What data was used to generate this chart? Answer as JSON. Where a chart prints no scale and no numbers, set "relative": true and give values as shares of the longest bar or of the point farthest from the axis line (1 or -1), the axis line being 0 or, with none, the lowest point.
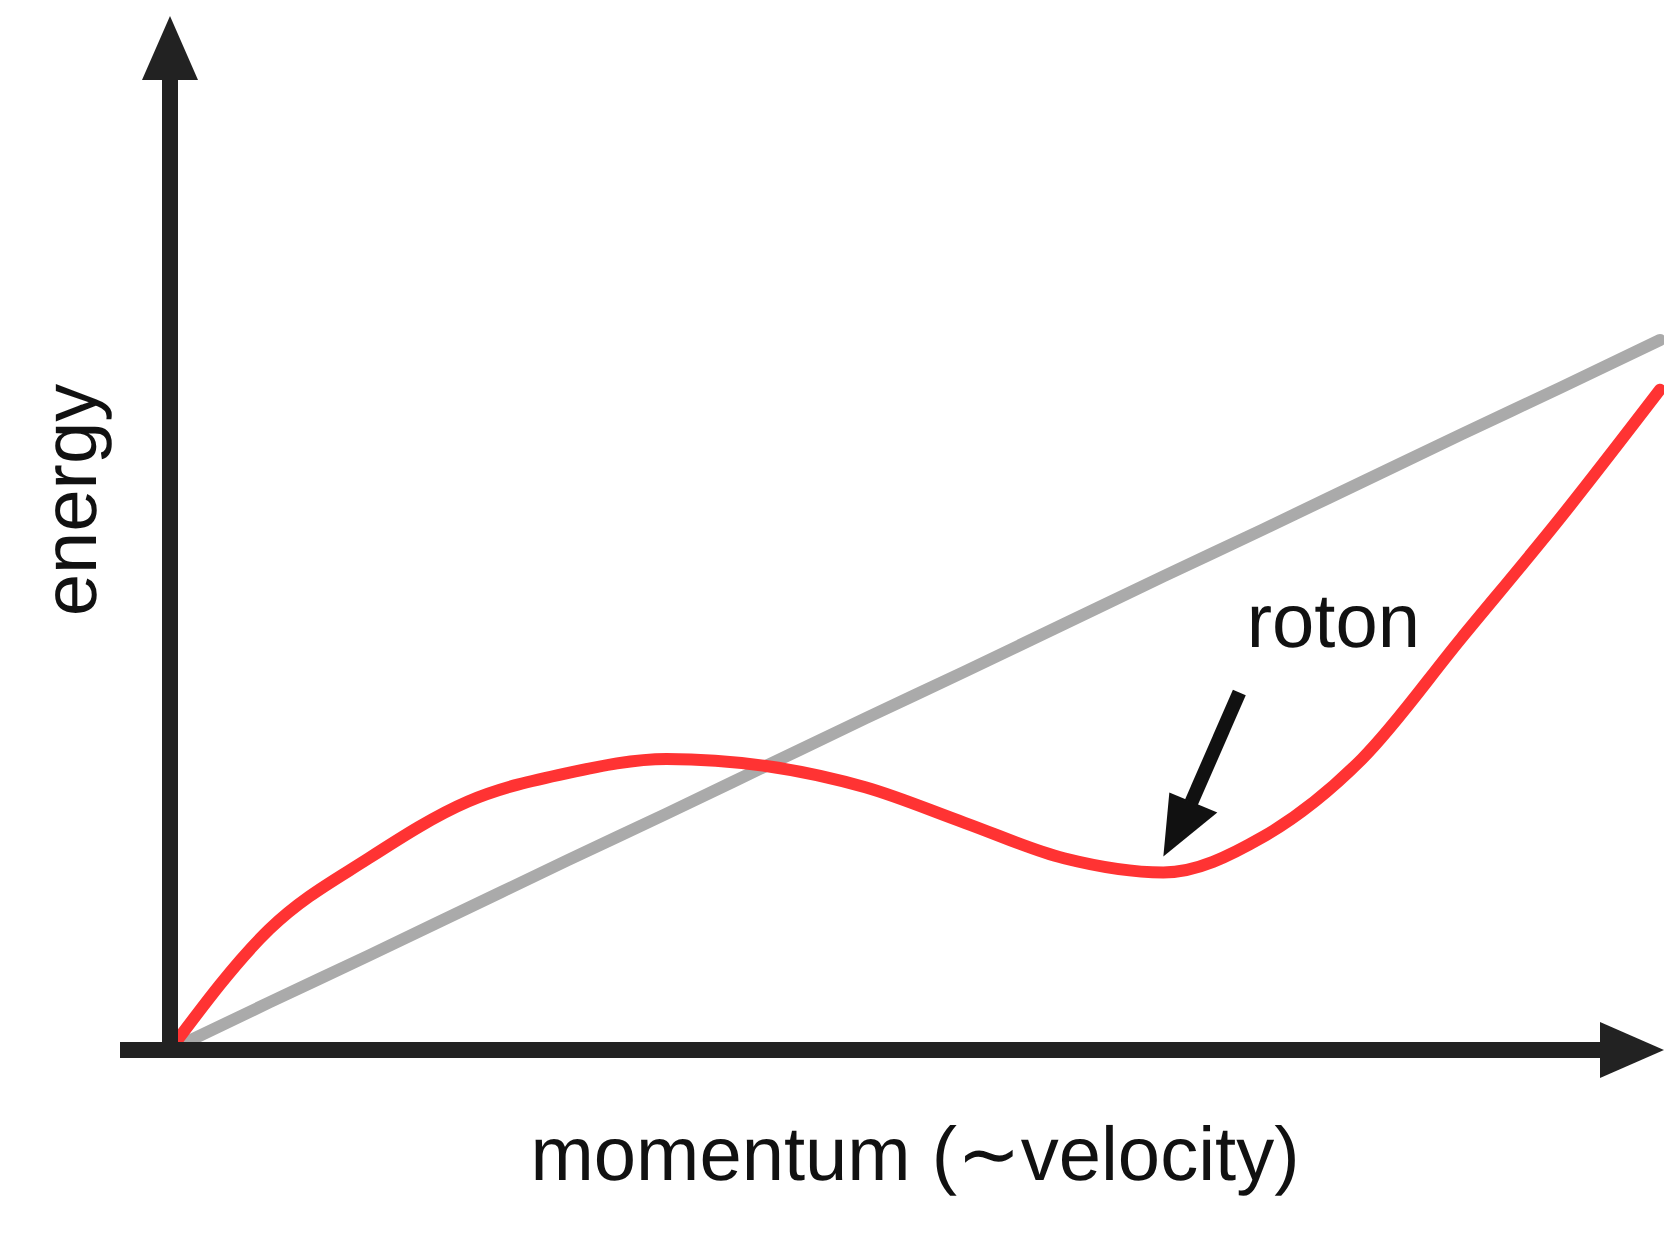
{
  "chart_data": {
    "type": "line",
    "relative": true,
    "xlabel": "momentum (∼velocity)",
    "ylabel": "energy",
    "annotations": [
      "roton"
    ],
    "categories": [
      null,
      null,
      null,
      null,
      null,
      null,
      null,
      null,
      null,
      null,
      null,
      null,
      null,
      null,
      null,
      null
    ],
    "series": [
      {
        "color": "#aaaaaa",
        "values": [
          0,
          0.067,
          0.133,
          0.2,
          0.267,
          0.333,
          0.4,
          0.467,
          0.533,
          0.6,
          0.667,
          0.733,
          0.8,
          0.867,
          0.933,
          1
        ]
      },
      {
        "color": "#ff3333",
        "values": [
          0,
          0.17,
          0.27,
          0.35,
          0.39,
          0.41,
          0.4,
          0.37,
          0.32,
          0.27,
          0.25,
          0.3,
          0.41,
          0.58,
          0.75,
          0.93
        ]
      }
    ]
  }
}
